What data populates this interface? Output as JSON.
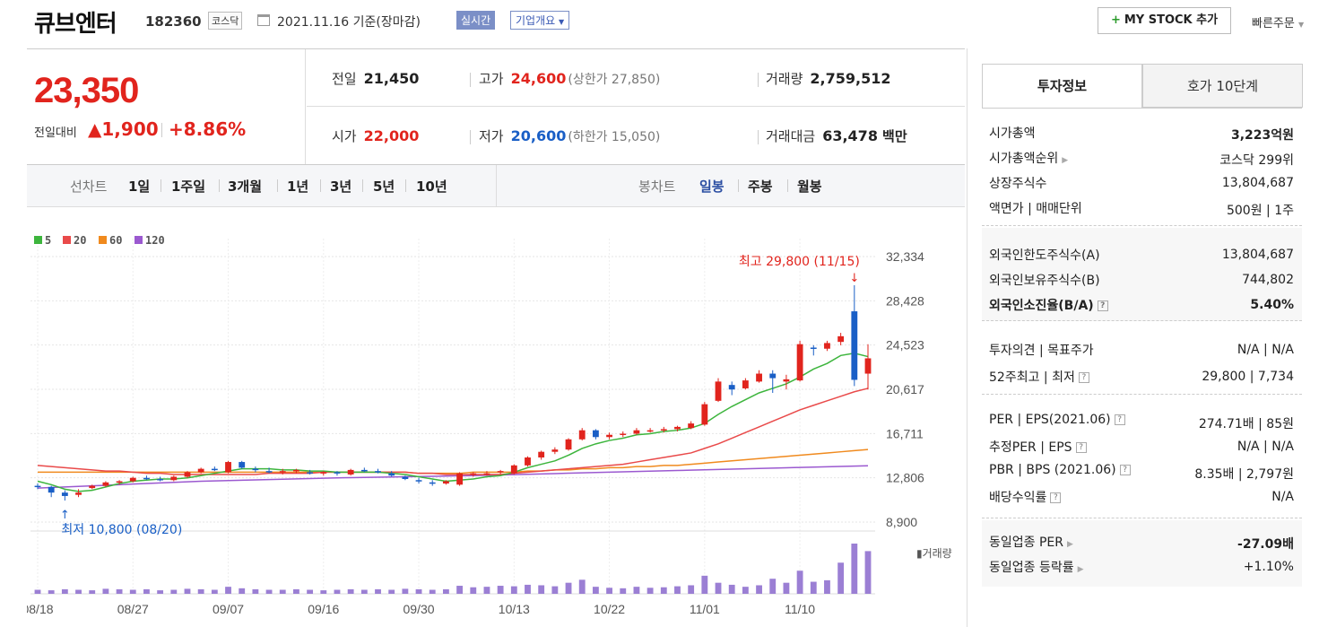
{
  "header": {
    "stock_name": "큐브엔터",
    "stock_code": "182360",
    "market": "코스닥",
    "date_text": "2021.11.16 기준(장마감)",
    "realtime_label": "실시간",
    "overview_label": "기업개요",
    "mystock_label": "MY STOCK 추가",
    "quick_order_label": "빠른주문"
  },
  "quote": {
    "price": "23,350",
    "change_label": "전일대비",
    "change_value": "1,900",
    "change_pct": "+8.86%",
    "prev_close_label": "전일",
    "prev_close": "21,450",
    "high_label": "고가",
    "high": "24,600",
    "upper_limit": "(상한가 27,850)",
    "volume_label": "거래량",
    "volume": "2,759,512",
    "open_label": "시가",
    "open": "22,000",
    "low_label": "저가",
    "low": "20,600",
    "lower_limit": "(하한가 15,050)",
    "amount_label": "거래대금",
    "amount": "63,478",
    "amount_unit": "백만"
  },
  "periods": {
    "line_chart_label": "선차트",
    "line_options": [
      "1일",
      "1주일",
      "3개월",
      "1년",
      "3년",
      "5년",
      "10년"
    ],
    "candle_label": "봉차트",
    "candle_options": [
      "일봉",
      "주봉",
      "월봉"
    ],
    "selected_candle": "일봉"
  },
  "chart_data": {
    "type": "candlestick",
    "legend": [
      {
        "name": "5",
        "color": "#3db53d"
      },
      {
        "name": "20",
        "color": "#e94a4a"
      },
      {
        "name": "60",
        "color": "#f08a1e"
      },
      {
        "name": "120",
        "color": "#9b59d0"
      }
    ],
    "y_ticks": [
      "32,334",
      "28,428",
      "24,523",
      "20,617",
      "16,711",
      "12,806",
      "8,900"
    ],
    "ylim": [
      8900,
      32334
    ],
    "x_ticks": [
      "08/18",
      "08/27",
      "09/07",
      "09/16",
      "09/30",
      "10/13",
      "10/22",
      "11/01",
      "11/10"
    ],
    "x_tick_index": [
      0,
      7,
      14,
      21,
      28,
      35,
      42,
      49,
      56
    ],
    "high_annotation": "최고 29,800 (11/15)",
    "low_annotation": "최저 10,800 (08/20)",
    "volume_label": "거래량",
    "candles": [
      [
        12100,
        12300,
        11800,
        12000
      ],
      [
        12000,
        12100,
        11100,
        11500
      ],
      [
        11500,
        11700,
        10800,
        11200
      ],
      [
        11300,
        11800,
        11100,
        11500
      ],
      [
        11900,
        12200,
        11800,
        12100
      ],
      [
        12100,
        12500,
        12000,
        12400
      ],
      [
        12400,
        12600,
        12200,
        12500
      ],
      [
        12500,
        12900,
        12400,
        12800
      ],
      [
        12800,
        13000,
        12600,
        12700
      ],
      [
        12700,
        12900,
        12500,
        12600
      ],
      [
        12600,
        13000,
        12500,
        12900
      ],
      [
        12900,
        13400,
        12800,
        13300
      ],
      [
        13300,
        13700,
        13200,
        13600
      ],
      [
        13600,
        13800,
        13400,
        13500
      ],
      [
        13300,
        14300,
        13200,
        14200
      ],
      [
        14200,
        14300,
        13600,
        13700
      ],
      [
        13600,
        13800,
        13300,
        13500
      ],
      [
        13400,
        13700,
        13200,
        13300
      ],
      [
        13300,
        13600,
        13100,
        13400
      ],
      [
        13400,
        13600,
        13200,
        13500
      ],
      [
        13300,
        13500,
        13100,
        13200
      ],
      [
        13200,
        13400,
        13000,
        13300
      ],
      [
        13300,
        13400,
        13000,
        13200
      ],
      [
        13100,
        13600,
        13000,
        13500
      ],
      [
        13500,
        13700,
        13300,
        13400
      ],
      [
        13400,
        13600,
        13200,
        13300
      ],
      [
        13200,
        13400,
        12900,
        13000
      ],
      [
        12900,
        13000,
        12600,
        12700
      ],
      [
        12600,
        12800,
        12300,
        12500
      ],
      [
        12400,
        12600,
        12100,
        12300
      ],
      [
        12300,
        12600,
        12200,
        12500
      ],
      [
        12200,
        13300,
        12100,
        13200
      ],
      [
        13100,
        13300,
        12900,
        13200
      ],
      [
        13200,
        13400,
        13000,
        13200
      ],
      [
        13300,
        13500,
        13100,
        13400
      ],
      [
        13200,
        14000,
        13100,
        13900
      ],
      [
        13900,
        14700,
        13800,
        14600
      ],
      [
        14600,
        15200,
        14400,
        15100
      ],
      [
        15100,
        15500,
        14900,
        15300
      ],
      [
        15300,
        16300,
        15200,
        16200
      ],
      [
        16200,
        17200,
        16100,
        17000
      ],
      [
        17000,
        17100,
        16200,
        16400
      ],
      [
        16400,
        16800,
        16200,
        16600
      ],
      [
        16600,
        16900,
        16400,
        16700
      ],
      [
        16700,
        17200,
        16600,
        17000
      ],
      [
        17000,
        17200,
        16800,
        17000
      ],
      [
        17000,
        17300,
        16800,
        17100
      ],
      [
        17100,
        17400,
        16900,
        17300
      ],
      [
        17200,
        17800,
        17100,
        17600
      ],
      [
        17500,
        19500,
        17400,
        19300
      ],
      [
        19600,
        21600,
        19500,
        21300
      ],
      [
        21000,
        21300,
        20100,
        20600
      ],
      [
        20700,
        21600,
        20600,
        21400
      ],
      [
        21300,
        22300,
        21200,
        22000
      ],
      [
        22000,
        22300,
        20300,
        21600
      ],
      [
        21300,
        21900,
        20600,
        21500
      ],
      [
        21400,
        24900,
        21300,
        24600
      ],
      [
        24300,
        24500,
        23600,
        24200
      ],
      [
        24200,
        24900,
        24000,
        24700
      ],
      [
        24800,
        25600,
        24500,
        25300
      ],
      [
        27500,
        29800,
        20900,
        21450
      ],
      [
        22000,
        24600,
        20600,
        23350
      ]
    ],
    "volumes": [
      8,
      7,
      9,
      8,
      7,
      10,
      9,
      8,
      9,
      7,
      8,
      10,
      9,
      8,
      14,
      11,
      9,
      8,
      8,
      9,
      8,
      7,
      8,
      9,
      8,
      9,
      8,
      10,
      9,
      8,
      9,
      16,
      13,
      14,
      16,
      15,
      18,
      17,
      15,
      22,
      28,
      14,
      12,
      11,
      14,
      12,
      13,
      15,
      17,
      36,
      22,
      18,
      14,
      17,
      30,
      22,
      46,
      24,
      27,
      62,
      100,
      85
    ],
    "ma5": [
      12500,
      12200,
      11800,
      11600,
      11700,
      12000,
      12300,
      12500,
      12600,
      12700,
      12700,
      12800,
      13000,
      13200,
      13400,
      13600,
      13600,
      13600,
      13500,
      13500,
      13400,
      13400,
      13300,
      13300,
      13300,
      13300,
      13200,
      13100,
      12900,
      12700,
      12500,
      12600,
      12700,
      12900,
      13000,
      13300,
      13700,
      14000,
      14300,
      14800,
      15400,
      15800,
      16100,
      16300,
      16600,
      16700,
      16900,
      17000,
      17200,
      17600,
      18400,
      19100,
      19700,
      20300,
      20700,
      21100,
      21700,
      22400,
      22900,
      23600,
      23800,
      23500
    ],
    "ma20": [
      13900,
      13800,
      13700,
      13600,
      13500,
      13400,
      13400,
      13300,
      13200,
      13200,
      13100,
      13100,
      13100,
      13100,
      13100,
      13100,
      13100,
      13200,
      13200,
      13200,
      13200,
      13300,
      13300,
      13300,
      13300,
      13300,
      13300,
      13300,
      13200,
      13200,
      13100,
      13100,
      13100,
      13100,
      13100,
      13200,
      13300,
      13400,
      13500,
      13600,
      13700,
      13800,
      13900,
      14000,
      14200,
      14400,
      14600,
      14800,
      15000,
      15400,
      15800,
      16300,
      16800,
      17300,
      17800,
      18300,
      18800,
      19200,
      19600,
      20000,
      20400,
      20700
    ],
    "ma60": [
      13300,
      13300,
      13300,
      13300,
      13300,
      13300,
      13300,
      13300,
      13300,
      13300,
      13300,
      13300,
      13300,
      13300,
      13300,
      13300,
      13300,
      13300,
      13300,
      13300,
      13300,
      13300,
      13300,
      13300,
      13300,
      13300,
      13300,
      13300,
      13200,
      13200,
      13200,
      13200,
      13300,
      13300,
      13300,
      13300,
      13400,
      13400,
      13500,
      13500,
      13600,
      13600,
      13700,
      13700,
      13800,
      13800,
      13900,
      13900,
      14000,
      14100,
      14200,
      14300,
      14400,
      14500,
      14600,
      14700,
      14800,
      14900,
      15000,
      15100,
      15200,
      15300
    ],
    "ma120": [
      11900,
      11950,
      12000,
      12050,
      12100,
      12150,
      12200,
      12250,
      12300,
      12350,
      12400,
      12450,
      12500,
      12530,
      12560,
      12590,
      12620,
      12650,
      12680,
      12710,
      12740,
      12770,
      12800,
      12820,
      12840,
      12860,
      12880,
      12900,
      12920,
      12940,
      12960,
      12980,
      13000,
      13030,
      13060,
      13090,
      13120,
      13150,
      13180,
      13210,
      13240,
      13270,
      13300,
      13330,
      13360,
      13390,
      13420,
      13450,
      13480,
      13510,
      13540,
      13570,
      13600,
      13630,
      13660,
      13690,
      13720,
      13750,
      13780,
      13810,
      13840,
      13870
    ]
  },
  "invest_panel": {
    "tab_active": "투자정보",
    "tab_inactive": "호가 10단계",
    "rows1": [
      {
        "k": "시가총액",
        "v": "3,223억원"
      },
      {
        "k": "시가총액순위",
        "v": "코스닥 299위"
      },
      {
        "k": "상장주식수",
        "v": "13,804,687"
      },
      {
        "k": "액면가 | 매매단위",
        "v": "500원 | 1주"
      }
    ],
    "rows2": [
      {
        "k": "외국인한도주식수(A)",
        "v": "13,804,687"
      },
      {
        "k": "외국인보유주식수(B)",
        "v": "744,802"
      },
      {
        "k": "외국인소진율(B/A)",
        "v": "5.40%"
      }
    ],
    "rows3": [
      {
        "k": "투자의견 | 목표주가",
        "v": "N/A | N/A"
      },
      {
        "k": "52주최고 | 최저",
        "v": "29,800 | 7,734"
      }
    ],
    "rows4": [
      {
        "k": "PER | EPS(2021.06)",
        "v": "274.71배 | 85원"
      },
      {
        "k": "추정PER | EPS",
        "v": "N/A | N/A"
      },
      {
        "k": "PBR | BPS (2021.06)",
        "v": "8.35배 | 2,797원"
      },
      {
        "k": "배당수익률",
        "v": "N/A"
      }
    ],
    "rows5": [
      {
        "k": "동일업종 PER",
        "v": "-27.09배"
      },
      {
        "k": "동일업종 등락률",
        "v": "+1.10%"
      }
    ]
  }
}
